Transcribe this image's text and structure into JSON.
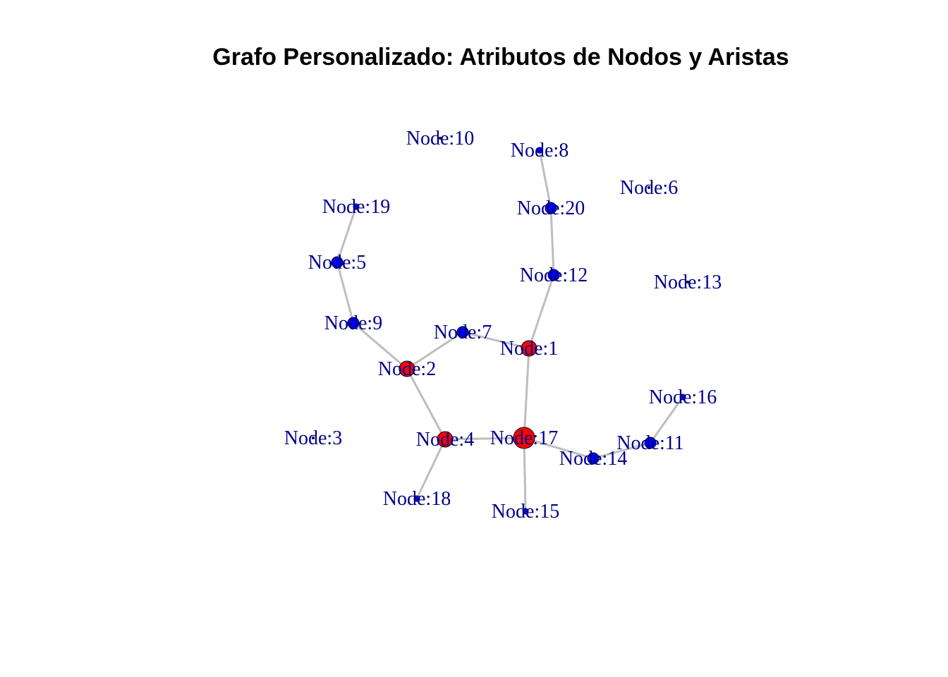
{
  "title": "Grafo Personalizado: Atributos de Nodos y Aristas",
  "colors": {
    "hub": "#ff0000",
    "regular": "#0000ff",
    "edge": "#bebebe",
    "label": "#00008b"
  },
  "nodes": [
    {
      "id": "1",
      "label": "Node:1",
      "kind": "hub"
    },
    {
      "id": "2",
      "label": "Node:2",
      "kind": "hub"
    },
    {
      "id": "3",
      "label": "Node:3",
      "kind": "isolated"
    },
    {
      "id": "4",
      "label": "Node:4",
      "kind": "hub"
    },
    {
      "id": "5",
      "label": "Node:5",
      "kind": "regular"
    },
    {
      "id": "6",
      "label": "Node:6",
      "kind": "isolated"
    },
    {
      "id": "7",
      "label": "Node:7",
      "kind": "regular"
    },
    {
      "id": "8",
      "label": "Node:8",
      "kind": "leaf"
    },
    {
      "id": "9",
      "label": "Node:9",
      "kind": "regular"
    },
    {
      "id": "10",
      "label": "Node:10",
      "kind": "isolated"
    },
    {
      "id": "11",
      "label": "Node:11",
      "kind": "regular"
    },
    {
      "id": "12",
      "label": "Node:12",
      "kind": "regular"
    },
    {
      "id": "13",
      "label": "Node:13",
      "kind": "isolated"
    },
    {
      "id": "14",
      "label": "Node:14",
      "kind": "regular"
    },
    {
      "id": "15",
      "label": "Node:15",
      "kind": "leaf"
    },
    {
      "id": "16",
      "label": "Node:16",
      "kind": "leaf"
    },
    {
      "id": "17",
      "label": "Node:17",
      "kind": "bighub"
    },
    {
      "id": "18",
      "label": "Node:18",
      "kind": "leaf"
    },
    {
      "id": "19",
      "label": "Node:19",
      "kind": "leaf"
    },
    {
      "id": "20",
      "label": "Node:20",
      "kind": "regular"
    }
  ],
  "edges": [
    [
      "8",
      "20"
    ],
    [
      "20",
      "12"
    ],
    [
      "12",
      "1"
    ],
    [
      "1",
      "7"
    ],
    [
      "7",
      "2"
    ],
    [
      "2",
      "9"
    ],
    [
      "9",
      "5"
    ],
    [
      "5",
      "19"
    ],
    [
      "2",
      "4"
    ],
    [
      "4",
      "17"
    ],
    [
      "4",
      "18"
    ],
    [
      "17",
      "1"
    ],
    [
      "17",
      "15"
    ],
    [
      "17",
      "14"
    ],
    [
      "14",
      "11"
    ],
    [
      "11",
      "16"
    ]
  ]
}
